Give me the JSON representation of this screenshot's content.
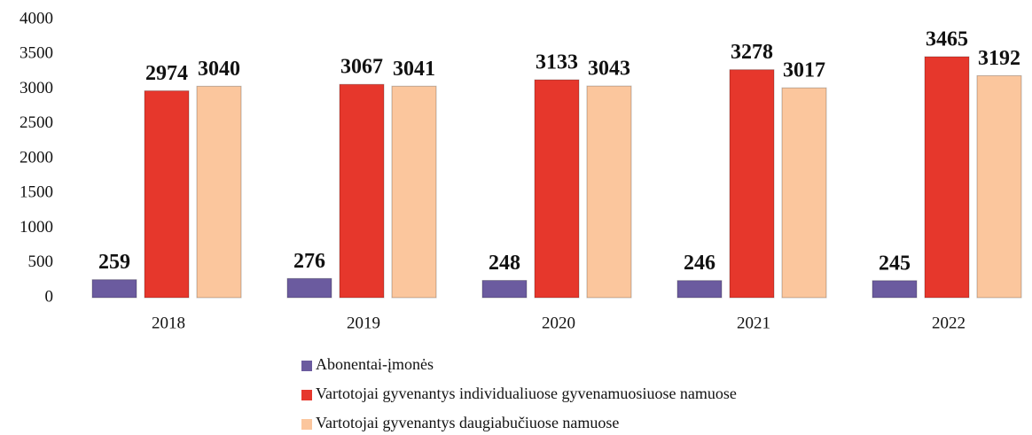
{
  "chart_data": {
    "type": "bar",
    "categories": [
      "2018",
      "2019",
      "2020",
      "2021",
      "2022"
    ],
    "series": [
      {
        "name": "Abonentai-įmonės",
        "color": "#6b5b9f",
        "values": [
          259,
          276,
          248,
          246,
          245
        ]
      },
      {
        "name": "Vartotojai gyvenantys individualiuose gyvenamuosiuose namuose",
        "color": "#e6372c",
        "values": [
          2974,
          3067,
          3133,
          3278,
          3465
        ]
      },
      {
        "name": "Vartotojai gyvenantys daugiabučiuose namuose",
        "color": "#fbc69d",
        "values": [
          3040,
          3041,
          3043,
          3017,
          3192
        ]
      }
    ],
    "ylim": [
      0,
      4000
    ],
    "yticks": [
      0,
      500,
      1000,
      1500,
      2000,
      2500,
      3000,
      3500,
      4000
    ],
    "grid": false,
    "legend": "bottom"
  }
}
